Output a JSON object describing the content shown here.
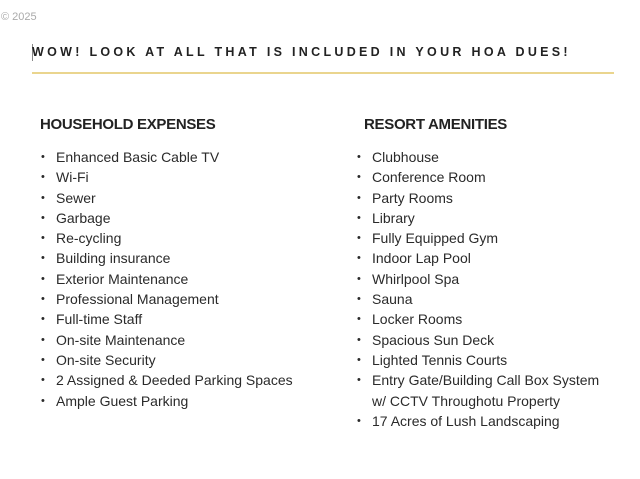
{
  "copyright": "© 2025",
  "title": "WOW! LOOK AT ALL THAT IS INCLUDED IN YOUR HOA DUES!",
  "accent_color": "#ead58e",
  "household": {
    "heading": "HOUSEHOLD EXPENSES",
    "items": [
      "Enhanced Basic Cable TV",
      "Wi-Fi",
      "Sewer",
      "Garbage",
      "Re-cycling",
      "Building insurance",
      "Exterior Maintenance",
      "Professional Management",
      "Full-time Staff",
      "On-site Maintenance",
      "On-site Security",
      "2 Assigned & Deeded Parking Spaces",
      "Ample Guest Parking"
    ]
  },
  "resort": {
    "heading": "RESORT AMENITIES",
    "items": [
      "Clubhouse",
      "Conference Room",
      "Party Rooms",
      "Library",
      "Fully Equipped Gym",
      "Indoor Lap Pool",
      "Whirlpool Spa",
      "Sauna",
      "Locker Rooms",
      "Spacious Sun Deck",
      "Lighted Tennis Courts",
      "Entry Gate/Building Call Box System\nw/ CCTV Throughotu Property",
      "17 Acres of Lush Landscaping"
    ]
  }
}
